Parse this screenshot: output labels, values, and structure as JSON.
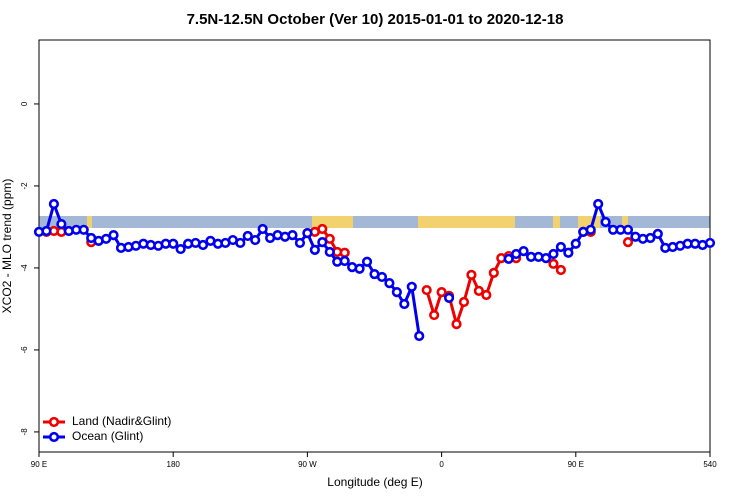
{
  "chart_data": {
    "type": "line",
    "title": "7.5N-12.5N October (Ver 10)   2015-01-01 to 2020-12-18",
    "x_label": "Longitude (deg E)",
    "y_label": "XCO2 - MLO trend (ppm)",
    "x": [
      90,
      95,
      100,
      105,
      110,
      115,
      120,
      125,
      130,
      135,
      140,
      145,
      150,
      155,
      160,
      165,
      170,
      175,
      180,
      185,
      190,
      195,
      200,
      205,
      210,
      215,
      220,
      225,
      230,
      235,
      240,
      245,
      250,
      255,
      260,
      265,
      270,
      275,
      280,
      285,
      290,
      295,
      300,
      305,
      310,
      315,
      320,
      325,
      330,
      335,
      340,
      345,
      350,
      355,
      360,
      365,
      370,
      375,
      380,
      385,
      390,
      395,
      400,
      405,
      410,
      415,
      420,
      425,
      430,
      435,
      440,
      445,
      450,
      455,
      460,
      465,
      470,
      475,
      480,
      485,
      490,
      495,
      500,
      505,
      510,
      515,
      520,
      525,
      530,
      535,
      540
    ],
    "series": [
      {
        "name": "Land (Nadir&Glint)",
        "color": "#ee0000",
        "values": [
          null,
          -3.12,
          -3.1,
          -3.12,
          null,
          null,
          null,
          -3.37,
          null,
          null,
          null,
          null,
          null,
          null,
          null,
          null,
          null,
          null,
          null,
          null,
          null,
          null,
          null,
          null,
          null,
          null,
          null,
          null,
          null,
          null,
          null,
          null,
          null,
          null,
          null,
          null,
          -3.15,
          -3.12,
          -3.05,
          -3.29,
          -3.61,
          -3.63,
          null,
          null,
          null,
          null,
          null,
          null,
          null,
          null,
          null,
          null,
          -4.54,
          -5.15,
          -4.59,
          -4.68,
          -5.37,
          -4.83,
          -4.17,
          -4.56,
          -4.66,
          -4.12,
          -3.76,
          -3.71,
          -3.76,
          null,
          null,
          null,
          null,
          -3.9,
          -4.05,
          null,
          null,
          -3.12,
          -3.12,
          null,
          null,
          null,
          null,
          -3.37,
          null,
          null,
          null,
          null,
          null,
          null,
          null,
          null,
          null,
          null,
          null
        ]
      },
      {
        "name": "Ocean (Glint)",
        "color": "#0000ee",
        "values": [
          -3.12,
          -3.1,
          -2.44,
          -2.93,
          -3.1,
          -3.07,
          -3.07,
          -3.27,
          -3.34,
          -3.29,
          -3.2,
          -3.51,
          -3.49,
          -3.46,
          -3.41,
          -3.44,
          -3.46,
          -3.41,
          -3.41,
          -3.54,
          -3.41,
          -3.39,
          -3.44,
          -3.34,
          -3.41,
          -3.39,
          -3.32,
          -3.39,
          -3.22,
          -3.32,
          -3.05,
          -3.27,
          -3.2,
          -3.24,
          -3.2,
          -3.39,
          -3.15,
          -3.56,
          -3.37,
          -3.61,
          -3.85,
          -3.83,
          -3.98,
          -4.02,
          -3.85,
          -4.15,
          -4.22,
          -4.37,
          -4.59,
          -4.88,
          -4.46,
          -5.66,
          null,
          null,
          null,
          -4.73,
          null,
          null,
          null,
          null,
          null,
          null,
          null,
          -3.78,
          -3.66,
          -3.59,
          -3.73,
          -3.73,
          -3.76,
          -3.66,
          -3.49,
          -3.63,
          -3.41,
          -3.12,
          -3.07,
          -2.44,
          -2.88,
          -3.07,
          -3.07,
          -3.07,
          -3.24,
          -3.29,
          -3.27,
          -3.17,
          -3.51,
          -3.49,
          -3.46,
          -3.41,
          -3.41,
          -3.44,
          -3.39
        ]
      }
    ],
    "xlim": [
      90,
      540
    ],
    "xticks": [
      {
        "value": 90,
        "label": "90 E"
      },
      180,
      {
        "value": 270,
        "label": "90 W"
      },
      {
        "value": 360,
        "label": "0"
      },
      {
        "value": 450,
        "label": "90 E"
      },
      540
    ],
    "ylim": [
      -8.49,
      1.56
    ],
    "yticks": [
      0,
      -2,
      -4,
      -6,
      -8
    ],
    "legend": "bottom-left"
  }
}
